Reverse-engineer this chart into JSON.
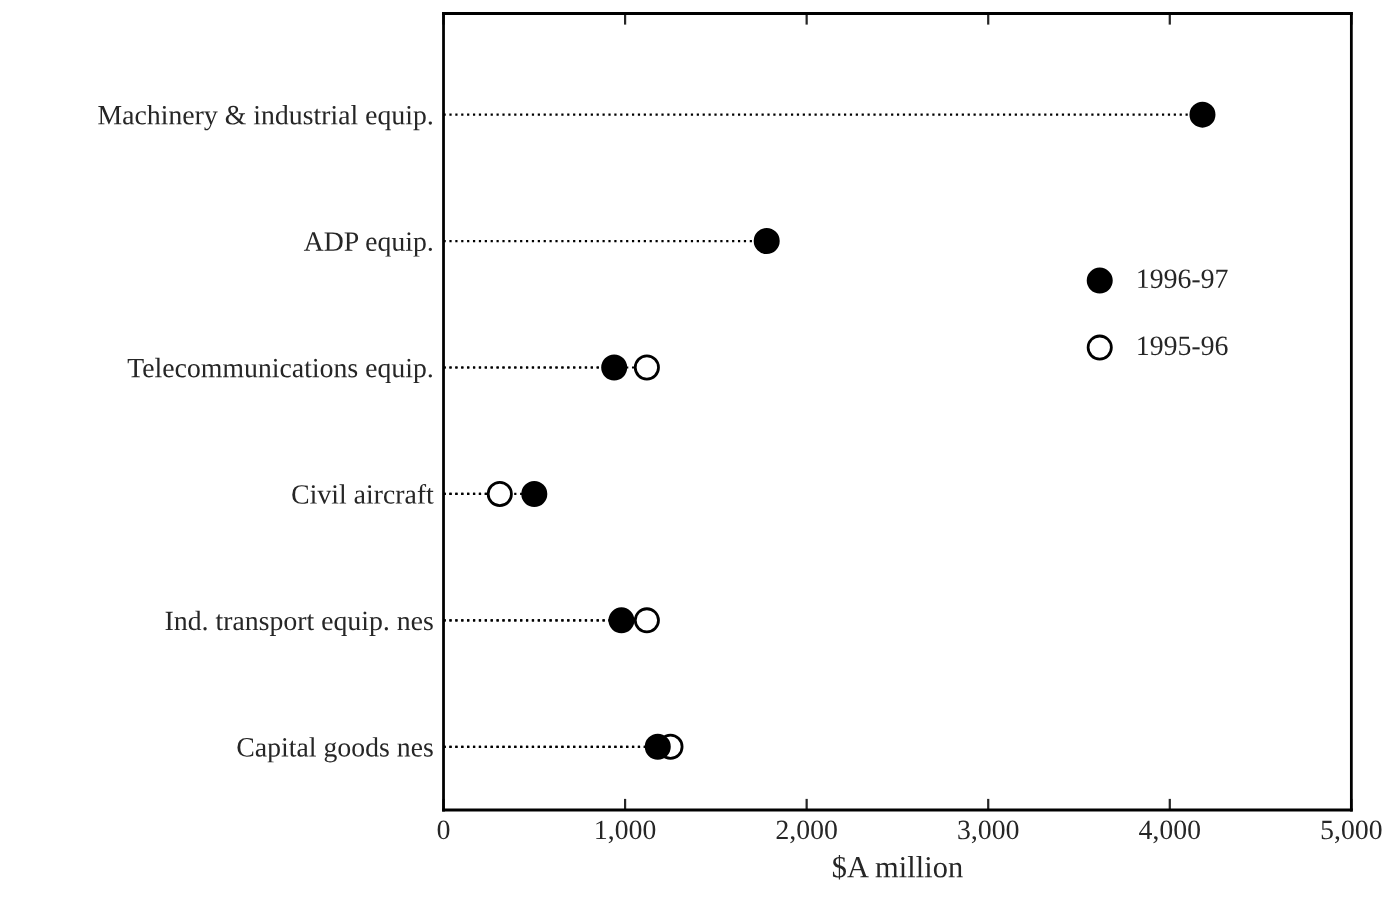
{
  "chart_data": {
    "type": "lollipop",
    "orientation": "horizontal",
    "xlabel": "$A million",
    "categories": [
      "Machinery & industrial equip.",
      "ADP equip.",
      "Telecommunications equip.",
      "Civil aircraft",
      "Ind. transport equip. nes",
      "Capital goods nes"
    ],
    "series": [
      {
        "name": "1996-97",
        "color": "#000000",
        "values": [
          4180,
          1780,
          940,
          500,
          980,
          1180
        ]
      },
      {
        "name": "1995-96",
        "color": "#ffffff",
        "values": [
          null,
          null,
          1120,
          310,
          1120,
          1250
        ]
      }
    ],
    "xlim": [
      0,
      5000
    ],
    "xticks": [
      {
        "value": 0,
        "label": "0"
      },
      {
        "value": 1000,
        "label": "1,000"
      },
      {
        "value": 2000,
        "label": "2,000"
      },
      {
        "value": 3000,
        "label": "3,000"
      },
      {
        "value": 4000,
        "label": "4,000"
      },
      {
        "value": 5000,
        "label": "5,000"
      }
    ],
    "legend": "top right",
    "grid": false,
    "marker": "circle",
    "line_style": "dotted"
  }
}
